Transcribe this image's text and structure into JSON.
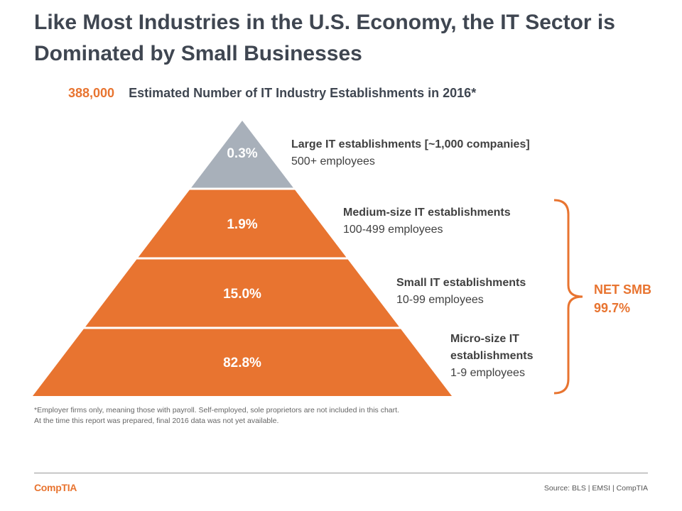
{
  "title": "Like Most Industries in the U.S. Economy, the IT Sector is Dominated by Small Businesses",
  "subtitle": {
    "value": "388,000",
    "text": "Estimated Number of IT Industry Establishments in 2016*"
  },
  "colors": {
    "orange": "#e87430",
    "gray": "#a8b0ba",
    "dark_text": "#3f4651"
  },
  "chart_data": {
    "type": "pyramid",
    "unit": "%",
    "tiers": [
      {
        "value": 0.3,
        "label": "0.3%",
        "name": "Large IT establishments  [~1,000 companies]",
        "range": "500+ employees",
        "color": "#a8b0ba"
      },
      {
        "value": 1.9,
        "label": "1.9%",
        "name": "Medium-size  IT establishments",
        "range": "100-499 employees",
        "color": "#e87430"
      },
      {
        "value": 15.0,
        "label": "15.0%",
        "name": "Small IT establishments",
        "range": "10-99 employees",
        "color": "#e87430"
      },
      {
        "value": 82.8,
        "label": "82.8%",
        "name": "Micro-size  IT establishments",
        "range": "1-9 employees",
        "color": "#e87430"
      }
    ],
    "bracket": {
      "label": "NET SMB",
      "value": "99.7%"
    }
  },
  "footnote": {
    "line1": "*Employer firms only, meaning those with payroll. Self-employed, sole proprietors are not included in this chart.",
    "line2": "At the time this report was prepared, final 2016 data was not yet available."
  },
  "footer": {
    "logo": "CompTIA",
    "source": "Source: BLS | EMSI | CompTIA"
  }
}
